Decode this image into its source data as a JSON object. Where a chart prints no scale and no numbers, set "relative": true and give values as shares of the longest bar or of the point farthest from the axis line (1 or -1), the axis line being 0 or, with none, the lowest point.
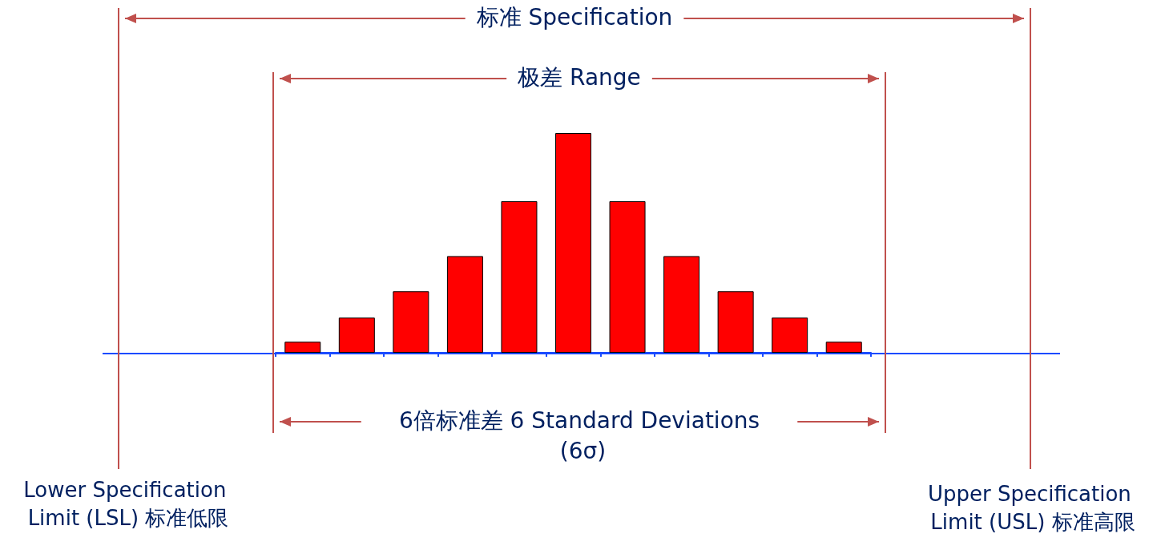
{
  "chart_data": {
    "type": "bar",
    "relative": true,
    "categories": [
      null,
      null,
      null,
      null,
      null,
      null,
      null,
      null,
      null,
      null,
      null
    ],
    "values": [
      0.05,
      0.16,
      0.28,
      0.44,
      0.69,
      1,
      0.69,
      0.44,
      0.28,
      0.16,
      0.05
    ],
    "color": "#ff0000",
    "grid": false,
    "annotations": [
      "标准 Specification",
      "极差 Range",
      "6倍标准差 6 Standard Deviations (6σ)",
      "Lower Specification Limit (LSL) 标准低限",
      "Upper Specification Limit (USL) 标准高限"
    ]
  }
}
